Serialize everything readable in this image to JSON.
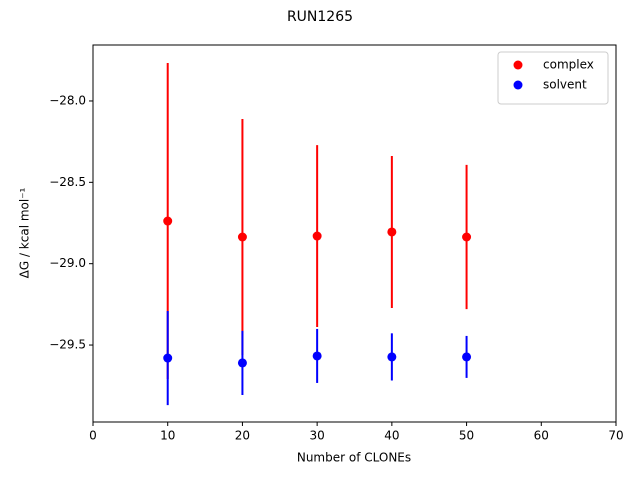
{
  "chart_data": {
    "type": "errorbar_scatter",
    "title": "RUN1265",
    "xlabel": "Number of CLONEs",
    "ylabel": "ΔG / kcal mol⁻¹",
    "x": [
      10,
      20,
      30,
      40,
      50
    ],
    "series": [
      {
        "name": "complex",
        "color": "#ff0000",
        "values": [
          -28.738,
          -28.836,
          -28.83,
          -28.805,
          -28.836
        ],
        "errors": [
          0.971,
          0.725,
          0.559,
          0.467,
          0.443
        ]
      },
      {
        "name": "solvent",
        "color": "#0000ff",
        "values": [
          -29.58,
          -29.61,
          -29.567,
          -29.573,
          -29.573
        ],
        "errors": [
          0.289,
          0.197,
          0.166,
          0.145,
          0.129
        ]
      }
    ],
    "xlim": [
      0,
      70
    ],
    "xticks": [
      0,
      10,
      20,
      30,
      40,
      50,
      60,
      70
    ],
    "ylim": [
      -29.973,
      -27.656
    ],
    "yticks": [
      {
        "value": -29.5,
        "label": "−29.5"
      },
      {
        "value": -29.0,
        "label": "−29.0"
      },
      {
        "value": -28.5,
        "label": "−28.5"
      },
      {
        "value": -28.0,
        "label": "−28.0"
      }
    ],
    "legend": "upper right",
    "grid": false
  }
}
